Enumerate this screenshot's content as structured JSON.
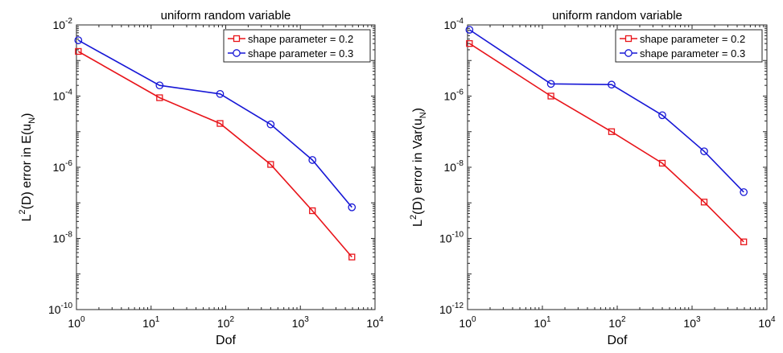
{
  "chart_data": [
    {
      "type": "line",
      "title": "uniform random variable",
      "xlabel": "Dof",
      "ylabel": {
        "prefix": "L",
        "sup": "2",
        "mid": "(D) error in E(u",
        "sub": "N",
        "suffix": ")"
      },
      "xscale": "log",
      "yscale": "log",
      "xlim": [
        1,
        10000
      ],
      "ylim": [
        1e-10,
        0.01
      ],
      "x_ticks": [
        {
          "base": "10",
          "exp": "0",
          "value": 1
        },
        {
          "base": "10",
          "exp": "1",
          "value": 10
        },
        {
          "base": "10",
          "exp": "2",
          "value": 100
        },
        {
          "base": "10",
          "exp": "3",
          "value": 1000
        },
        {
          "base": "10",
          "exp": "4",
          "value": 10000
        }
      ],
      "y_ticks": [
        {
          "base": "10",
          "exp": "-10",
          "value": 1e-10
        },
        {
          "base": "10",
          "exp": "-8",
          "value": 1e-08
        },
        {
          "base": "10",
          "exp": "-6",
          "value": 1e-06
        },
        {
          "base": "10",
          "exp": "-4",
          "value": 0.0001
        },
        {
          "base": "10",
          "exp": "-2",
          "value": 0.01
        }
      ],
      "legend_position": "top-right",
      "series": [
        {
          "name": "shape parameter = 0.2",
          "color": "#e8141a",
          "marker": "square",
          "x": [
            1.06,
            13,
            84,
            400,
            1450,
            4900
          ],
          "y": [
            0.0018,
            9e-05,
            1.7e-05,
            1.2e-06,
            6e-08,
            3e-09
          ]
        },
        {
          "name": "shape parameter = 0.3",
          "color": "#1717d6",
          "marker": "circle",
          "x": [
            1.06,
            13,
            84,
            400,
            1450,
            4900
          ],
          "y": [
            0.0037,
            0.0002,
            0.000115,
            1.6e-05,
            1.6e-06,
            7.5e-08
          ]
        }
      ]
    },
    {
      "type": "line",
      "title": "uniform random variable",
      "xlabel": "Dof",
      "ylabel": {
        "prefix": "L",
        "sup": "2",
        "mid": "(D) error in Var(u",
        "sub": "N",
        "suffix": ")"
      },
      "xscale": "log",
      "yscale": "log",
      "xlim": [
        1,
        10000
      ],
      "ylim": [
        1e-12,
        0.0001
      ],
      "x_ticks": [
        {
          "base": "10",
          "exp": "0",
          "value": 1
        },
        {
          "base": "10",
          "exp": "1",
          "value": 10
        },
        {
          "base": "10",
          "exp": "2",
          "value": 100
        },
        {
          "base": "10",
          "exp": "3",
          "value": 1000
        },
        {
          "base": "10",
          "exp": "4",
          "value": 10000
        }
      ],
      "y_ticks": [
        {
          "base": "10",
          "exp": "-12",
          "value": 1e-12
        },
        {
          "base": "10",
          "exp": "-10",
          "value": 1e-10
        },
        {
          "base": "10",
          "exp": "-8",
          "value": 1e-08
        },
        {
          "base": "10",
          "exp": "-6",
          "value": 1e-06
        },
        {
          "base": "10",
          "exp": "-4",
          "value": 0.0001
        }
      ],
      "legend_position": "top-right",
      "series": [
        {
          "name": "shape parameter = 0.2",
          "color": "#e8141a",
          "marker": "square",
          "x": [
            1.06,
            13,
            84,
            400,
            1450,
            4900
          ],
          "y": [
            3e-05,
            1e-06,
            1e-07,
            1.3e-08,
            1.05e-09,
            8e-11
          ]
        },
        {
          "name": "shape parameter = 0.3",
          "color": "#1717d6",
          "marker": "circle",
          "x": [
            1.06,
            13,
            84,
            400,
            1450,
            4900
          ],
          "y": [
            7.3e-05,
            2.2e-06,
            2.1e-06,
            2.9e-07,
            2.8e-08,
            2e-09
          ]
        }
      ]
    }
  ]
}
